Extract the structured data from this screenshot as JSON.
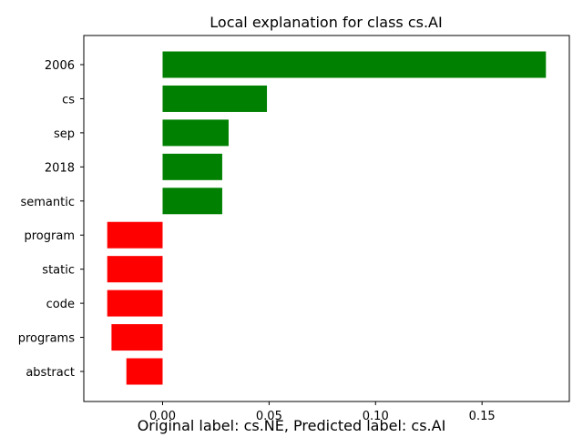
{
  "chart_data": {
    "type": "bar",
    "orientation": "horizontal",
    "title": "Local explanation for class cs.AI",
    "xlabel": "",
    "ylabel": "",
    "categories": [
      "2006",
      "cs",
      "sep",
      "2018",
      "semantic",
      "program",
      "static",
      "code",
      "programs",
      "abstract"
    ],
    "values": [
      0.18,
      0.049,
      0.031,
      0.028,
      0.028,
      -0.026,
      -0.026,
      -0.026,
      -0.024,
      -0.017
    ],
    "colors": [
      "#008000",
      "#008000",
      "#008000",
      "#008000",
      "#008000",
      "#ff0000",
      "#ff0000",
      "#ff0000",
      "#ff0000",
      "#ff0000"
    ],
    "xlim": [
      -0.037,
      0.191
    ],
    "xticks": [
      0.0,
      0.05,
      0.1,
      0.15
    ],
    "xtick_labels": [
      "0.00",
      "0.05",
      "0.10",
      "0.15"
    ],
    "grid": false,
    "legend": "none"
  },
  "caption": "Original label: cs.NE, Predicted label: cs.AI",
  "colors": {
    "positive": "#008000",
    "negative": "#ff0000"
  }
}
